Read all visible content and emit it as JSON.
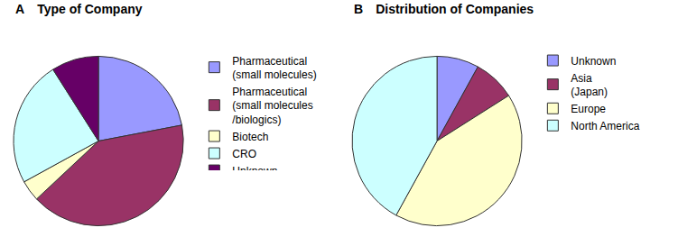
{
  "chart_data": [
    {
      "type": "pie",
      "annotations": [
        "A"
      ],
      "title": "Type of Company",
      "categories": [
        "Pharmaceutical (small molecules)",
        "Pharmaceutical (small molecules /biologics)",
        "Biotech",
        "CRO",
        "Unknown"
      ],
      "values": [
        22,
        41,
        4,
        24,
        9
      ],
      "colors": [
        "#9999ff",
        "#993366",
        "#ffffcc",
        "#ccffff",
        "#660066"
      ],
      "legend": "right"
    },
    {
      "type": "pie",
      "annotations": [
        "B"
      ],
      "title": "Distribution of Companies",
      "categories": [
        "Unknown",
        "Asia (Japan)",
        "Europe",
        "North America"
      ],
      "values": [
        8,
        8,
        42,
        42
      ],
      "colors": [
        "#9999ff",
        "#993366",
        "#ffffcc",
        "#ccffff"
      ],
      "legend": "right"
    }
  ]
}
